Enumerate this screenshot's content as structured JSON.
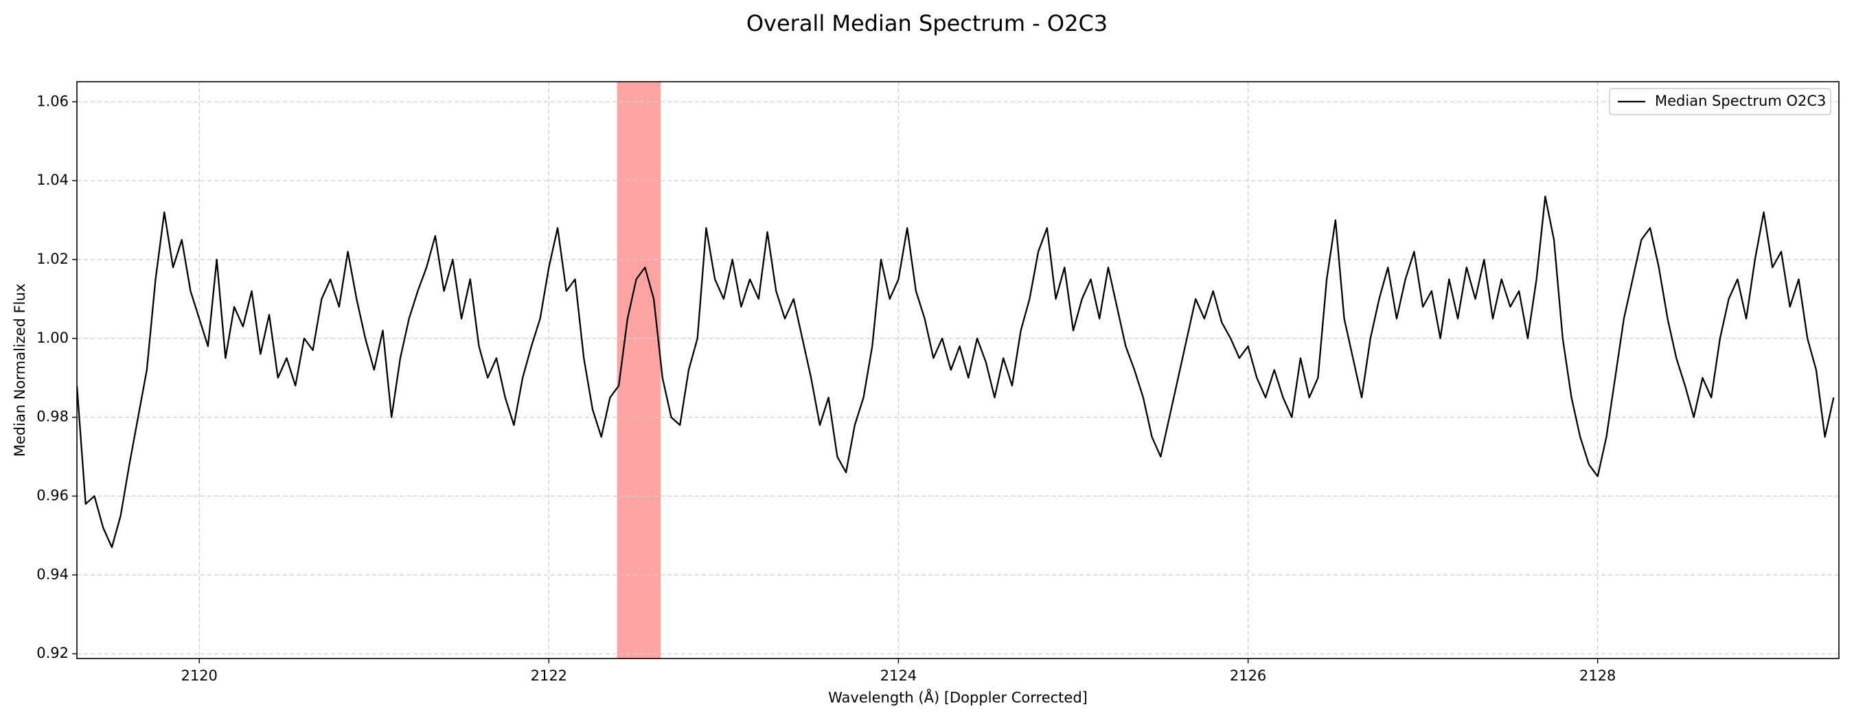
{
  "chart_data": {
    "type": "line",
    "title": "Overall Median Spectrum - O2C3",
    "xlabel": "Wavelength (Å) [Doppler Corrected]",
    "ylabel": "Median Normalized Flux",
    "x": [
      2119.3,
      2119.35,
      2119.4,
      2119.45,
      2119.5,
      2119.55,
      2119.6,
      2119.65,
      2119.7,
      2119.75,
      2119.8,
      2119.85,
      2119.9,
      2119.95,
      2120.0,
      2120.05,
      2120.1,
      2120.15,
      2120.2,
      2120.25,
      2120.3,
      2120.35,
      2120.4,
      2120.45,
      2120.5,
      2120.55,
      2120.6,
      2120.65,
      2120.7,
      2120.75,
      2120.8,
      2120.85,
      2120.9,
      2120.95,
      2121.0,
      2121.05,
      2121.1,
      2121.15,
      2121.2,
      2121.25,
      2121.3,
      2121.35,
      2121.4,
      2121.45,
      2121.5,
      2121.55,
      2121.6,
      2121.65,
      2121.7,
      2121.75,
      2121.8,
      2121.85,
      2121.9,
      2121.95,
      2122.0,
      2122.05,
      2122.1,
      2122.15,
      2122.2,
      2122.25,
      2122.3,
      2122.35,
      2122.4,
      2122.45,
      2122.5,
      2122.55,
      2122.6,
      2122.65,
      2122.7,
      2122.75,
      2122.8,
      2122.85,
      2122.9,
      2122.95,
      2123.0,
      2123.05,
      2123.1,
      2123.15,
      2123.2,
      2123.25,
      2123.3,
      2123.35,
      2123.4,
      2123.45,
      2123.5,
      2123.55,
      2123.6,
      2123.65,
      2123.7,
      2123.75,
      2123.8,
      2123.85,
      2123.9,
      2123.95,
      2124.0,
      2124.05,
      2124.1,
      2124.15,
      2124.2,
      2124.25,
      2124.3,
      2124.35,
      2124.4,
      2124.45,
      2124.5,
      2124.55,
      2124.6,
      2124.65,
      2124.7,
      2124.75,
      2124.8,
      2124.85,
      2124.9,
      2124.95,
      2125.0,
      2125.05,
      2125.1,
      2125.15,
      2125.2,
      2125.25,
      2125.3,
      2125.35,
      2125.4,
      2125.45,
      2125.5,
      2125.55,
      2125.6,
      2125.65,
      2125.7,
      2125.75,
      2125.8,
      2125.85,
      2125.9,
      2125.95,
      2126.0,
      2126.05,
      2126.1,
      2126.15,
      2126.2,
      2126.25,
      2126.3,
      2126.35,
      2126.4,
      2126.45,
      2126.5,
      2126.55,
      2126.6,
      2126.65,
      2126.7,
      2126.75,
      2126.8,
      2126.85,
      2126.9,
      2126.95,
      2127.0,
      2127.05,
      2127.1,
      2127.15,
      2127.2,
      2127.25,
      2127.3,
      2127.35,
      2127.4,
      2127.45,
      2127.5,
      2127.55,
      2127.6,
      2127.65,
      2127.7,
      2127.75,
      2127.8,
      2127.85,
      2127.9,
      2127.95,
      2128.0,
      2128.05,
      2128.1,
      2128.15,
      2128.2,
      2128.25,
      2128.3,
      2128.35,
      2128.4,
      2128.45,
      2128.5,
      2128.55,
      2128.6,
      2128.65,
      2128.7,
      2128.75,
      2128.8,
      2128.85,
      2128.9,
      2128.95,
      2129.0,
      2129.05,
      2129.1,
      2129.15,
      2129.2,
      2129.25,
      2129.3,
      2129.35
    ],
    "series": [
      {
        "name": "Median Spectrum O2C3",
        "color": "#000000",
        "values": [
          0.988,
          0.958,
          0.96,
          0.952,
          0.947,
          0.955,
          0.968,
          0.98,
          0.992,
          1.015,
          1.032,
          1.018,
          1.025,
          1.012,
          1.005,
          0.998,
          1.02,
          0.995,
          1.008,
          1.003,
          1.012,
          0.996,
          1.006,
          0.99,
          0.995,
          0.988,
          1.0,
          0.997,
          1.01,
          1.015,
          1.008,
          1.022,
          1.01,
          1.0,
          0.992,
          1.002,
          0.98,
          0.995,
          1.005,
          1.012,
          1.018,
          1.026,
          1.012,
          1.02,
          1.005,
          1.015,
          0.998,
          0.99,
          0.995,
          0.985,
          0.978,
          0.99,
          0.998,
          1.005,
          1.018,
          1.028,
          1.012,
          1.015,
          0.995,
          0.982,
          0.975,
          0.985,
          0.988,
          1.005,
          1.015,
          1.018,
          1.01,
          0.99,
          0.98,
          0.978,
          0.992,
          1.0,
          1.028,
          1.015,
          1.01,
          1.02,
          1.008,
          1.015,
          1.01,
          1.027,
          1.012,
          1.005,
          1.01,
          1.0,
          0.99,
          0.978,
          0.985,
          0.97,
          0.966,
          0.978,
          0.985,
          0.998,
          1.02,
          1.01,
          1.015,
          1.028,
          1.012,
          1.005,
          0.995,
          1.0,
          0.992,
          0.998,
          0.99,
          1.0,
          0.994,
          0.985,
          0.995,
          0.988,
          1.002,
          1.01,
          1.022,
          1.028,
          1.01,
          1.018,
          1.002,
          1.01,
          1.015,
          1.005,
          1.018,
          1.008,
          0.998,
          0.992,
          0.985,
          0.975,
          0.97,
          0.98,
          0.99,
          1.0,
          1.01,
          1.005,
          1.012,
          1.004,
          1.0,
          0.995,
          0.998,
          0.99,
          0.985,
          0.992,
          0.985,
          0.98,
          0.995,
          0.985,
          0.99,
          1.015,
          1.03,
          1.005,
          0.995,
          0.985,
          1.0,
          1.01,
          1.018,
          1.005,
          1.015,
          1.022,
          1.008,
          1.012,
          1.0,
          1.015,
          1.005,
          1.018,
          1.01,
          1.02,
          1.005,
          1.015,
          1.008,
          1.012,
          1.0,
          1.015,
          1.036,
          1.025,
          1.0,
          0.985,
          0.975,
          0.968,
          0.965,
          0.975,
          0.99,
          1.005,
          1.015,
          1.025,
          1.028,
          1.018,
          1.005,
          0.995,
          0.988,
          0.98,
          0.99,
          0.985,
          1.0,
          1.01,
          1.015,
          1.005,
          1.02,
          1.032,
          1.018,
          1.022,
          1.008,
          1.015,
          1.0,
          0.992,
          0.975,
          0.985
        ]
      }
    ],
    "highlight_span": [
      2122.39,
      2122.64
    ],
    "highlight_color": "#ff6666",
    "xlim": [
      2119.3,
      2129.38
    ],
    "ylim": [
      0.9188,
      1.0651
    ],
    "xticks": [
      2120,
      2122,
      2124,
      2126,
      2128
    ],
    "yticks": [
      0.92,
      0.94,
      0.96,
      0.98,
      {
        "value": 1,
        "label": "1.00"
      },
      1.02,
      1.04,
      1.06
    ],
    "grid": true,
    "legend": "upper right"
  }
}
